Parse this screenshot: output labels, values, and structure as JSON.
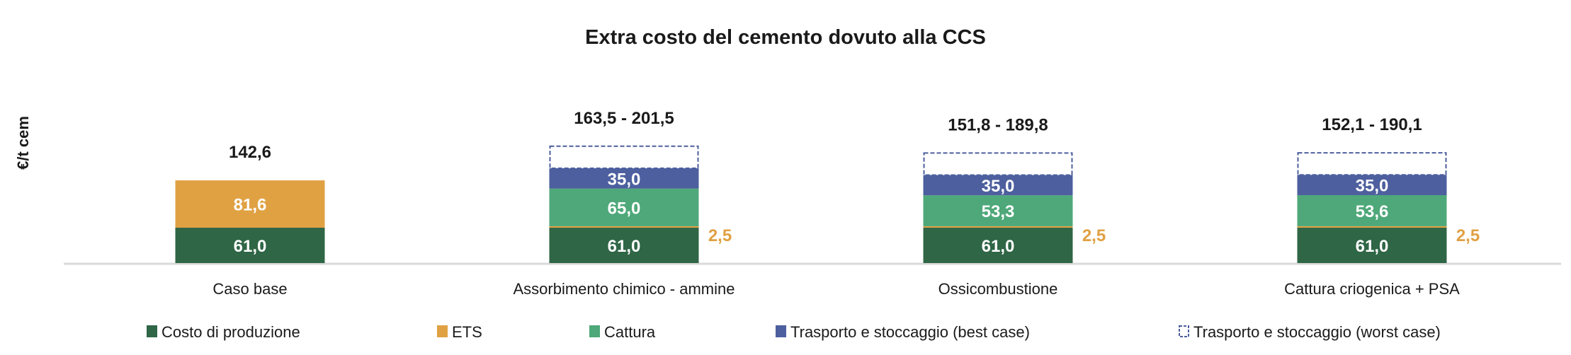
{
  "chart_data": {
    "type": "bar",
    "stacked": true,
    "title": "Extra costo del cemento dovuto alla CCS",
    "xlabel": "",
    "ylabel": "€/t cem",
    "ylim": [
      0,
      230
    ],
    "grid": false,
    "legend_position": "bottom",
    "categories": [
      "Caso base",
      "Assorbimento chimico - ammine",
      "Ossicombustione",
      "Cattura criogenica + PSA"
    ],
    "series": [
      {
        "name": "Costo di produzione",
        "color": "#2f6646",
        "values": [
          61.0,
          61.0,
          61.0,
          61.0
        ],
        "labels": [
          "61,0",
          "61,0",
          "61,0",
          "61,0"
        ]
      },
      {
        "name": "ETS",
        "color": "#e0a143",
        "values": [
          81.6,
          2.5,
          2.5,
          2.5
        ],
        "labels": [
          "81,6",
          "2,5",
          "2,5",
          "2,5"
        ]
      },
      {
        "name": "Cattura",
        "color": "#4ea879",
        "values": [
          0,
          65.0,
          53.3,
          53.6
        ],
        "labels": [
          "",
          "65,0",
          "53,3",
          "53,6"
        ]
      },
      {
        "name": "Trasporto e stoccaggio (best case)",
        "color": "#4d5f9e",
        "values": [
          0,
          35.0,
          35.0,
          35.0
        ],
        "labels": [
          "",
          "35,0",
          "35,0",
          "35,0"
        ]
      },
      {
        "name": "Trasporto e stoccaggio (worst case)",
        "color": "#4d5f9e",
        "dashed": true,
        "values": [
          0,
          38.0,
          38.0,
          38.0
        ],
        "labels": [
          "",
          "",
          "",
          ""
        ]
      }
    ],
    "totals": [
      "142,6",
      "163,5 - 201,5",
      "151,8 - 189,8",
      "152,1 - 190,1"
    ]
  }
}
